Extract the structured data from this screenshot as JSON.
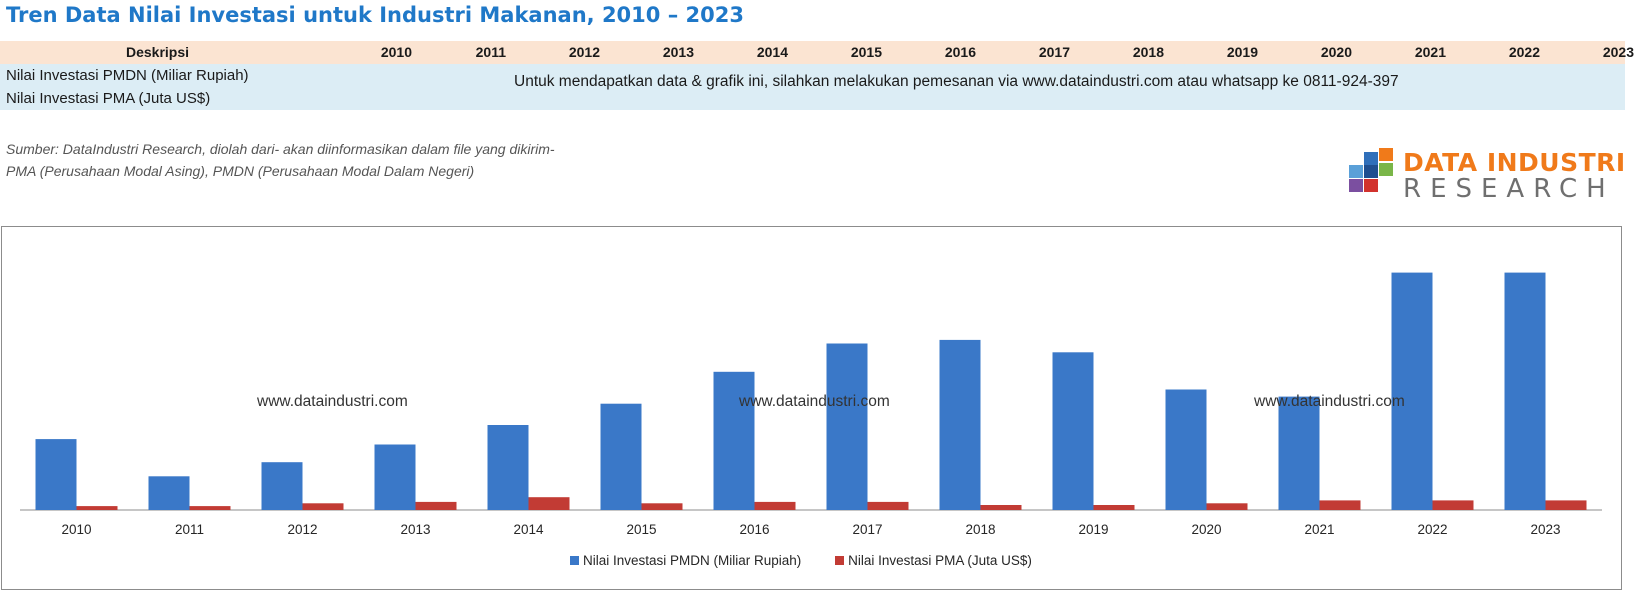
{
  "title": "Tren Data Nilai Investasi untuk Industri Makanan, 2010 – 2023",
  "table": {
    "header_desc": "Deskripsi",
    "years": [
      "2010",
      "2011",
      "2012",
      "2013",
      "2014",
      "2015",
      "2016",
      "2017",
      "2018",
      "2019",
      "2020",
      "2021",
      "2022",
      "2023"
    ],
    "rows": [
      {
        "label": "Nilai Investasi PMDN (Miliar Rupiah)"
      },
      {
        "label": "Nilai Investasi PMA (Juta US$)"
      }
    ],
    "notice": "Untuk mendapatkan data & grafik ini, silahkan melakukan pemesanan via www.dataindustri.com atau whatsapp ke 0811-924-397"
  },
  "source_lines": [
    "Sumber: DataIndustri Research, diolah dari- akan diinformasikan dalam file yang dikirim-",
    "PMA (Perusahaan Modal Asing), PMDN (Perusahaan Modal Dalam Negeri)"
  ],
  "logo": {
    "line1": "DATA INDUSTRI",
    "line2": "RESEARCH"
  },
  "watermark": "www.dataindustri.com",
  "colors": {
    "pmdn": "#3a78c8",
    "pma": "#c23b34",
    "title": "#1f78c8",
    "logo_orange": "#f07a1a"
  },
  "chart_data": {
    "type": "bar",
    "categories": [
      "2010",
      "2011",
      "2012",
      "2013",
      "2014",
      "2015",
      "2016",
      "2017",
      "2018",
      "2019",
      "2020",
      "2021",
      "2022",
      "2023"
    ],
    "series": [
      {
        "name": "Nilai Investasi PMDN (Miliar Rupiah)",
        "color": "#3a78c8",
        "values": [
          20,
          9.5,
          13.5,
          18.5,
          24,
          30,
          39,
          47,
          48,
          44.5,
          34,
          32,
          67,
          67
        ]
      },
      {
        "name": "Nilai Investasi PMA (Juta US$)",
        "color": "#c23b34",
        "values": [
          1.1,
          1.1,
          1.9,
          2.3,
          3.6,
          1.9,
          2.3,
          2.3,
          1.4,
          1.4,
          1.9,
          2.7,
          2.7,
          2.7
        ]
      }
    ],
    "ylim": [
      0,
      70
    ],
    "grid": false,
    "legend": "bottom"
  }
}
